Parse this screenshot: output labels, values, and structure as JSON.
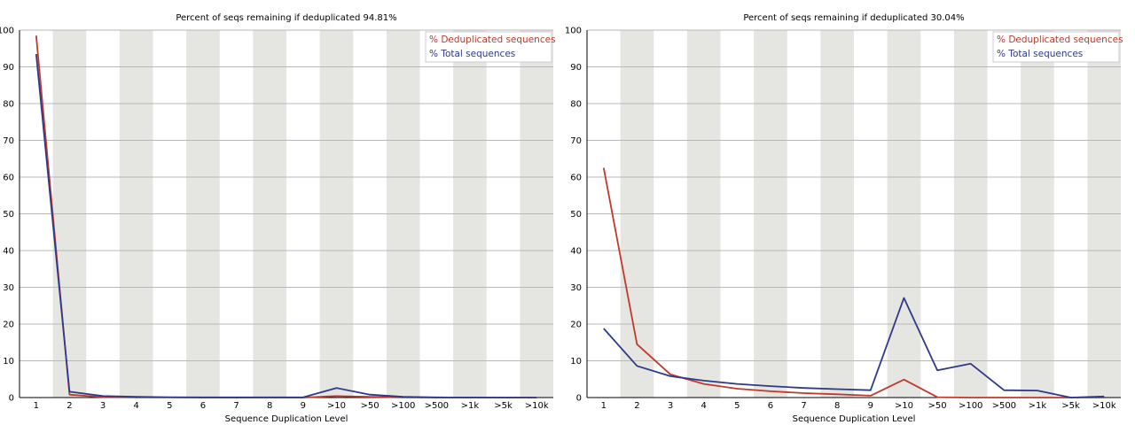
{
  "chart_data": [
    {
      "type": "line",
      "title": "Percent of seqs remaining if deduplicated 94.81%",
      "xlabel": "Sequence Duplication Level",
      "ylabel": "",
      "categories": [
        "1",
        "2",
        "3",
        "4",
        "5",
        "6",
        "7",
        "8",
        "9",
        ">10",
        ">50",
        ">100",
        ">500",
        ">1k",
        ">5k",
        ">10k"
      ],
      "ylim": [
        0,
        100
      ],
      "yticks": [
        0,
        10,
        20,
        30,
        40,
        50,
        60,
        70,
        80,
        90,
        100
      ],
      "grid": true,
      "legend_position": "top-right",
      "series": [
        {
          "name": "% Deduplicated sequences",
          "color": "#c0392b",
          "values": [
            98.5,
            0.8,
            0.1,
            0.05,
            0.02,
            0.01,
            0.01,
            0.01,
            0.01,
            0.4,
            0.2,
            0.05,
            0.01,
            0.0,
            0.0,
            0.0
          ]
        },
        {
          "name": "% Total sequences",
          "color": "#2e3a87",
          "values": [
            93.5,
            1.6,
            0.4,
            0.2,
            0.1,
            0.05,
            0.05,
            0.05,
            0.05,
            2.6,
            0.8,
            0.2,
            0.05,
            0.02,
            0.0,
            0.0
          ]
        }
      ]
    },
    {
      "type": "line",
      "title": "Percent of seqs remaining if deduplicated 30.04%",
      "xlabel": "Sequence Duplication Level",
      "ylabel": "",
      "categories": [
        "1",
        "2",
        "3",
        "4",
        "5",
        "6",
        "7",
        "8",
        "9",
        ">10",
        ">50",
        ">100",
        ">500",
        ">1k",
        ">5k",
        ">10k"
      ],
      "ylim": [
        0,
        100
      ],
      "yticks": [
        0,
        10,
        20,
        30,
        40,
        50,
        60,
        70,
        80,
        90,
        100
      ],
      "grid": true,
      "legend_position": "top-right",
      "series": [
        {
          "name": "% Deduplicated sequences",
          "color": "#c0392b",
          "values": [
            62.5,
            14.5,
            6.3,
            3.7,
            2.4,
            1.7,
            1.2,
            0.9,
            0.5,
            4.9,
            0.1,
            0.0,
            0.0,
            0.0,
            0.0,
            0.0
          ]
        },
        {
          "name": "% Total sequences",
          "color": "#2e3a87",
          "values": [
            18.8,
            8.6,
            5.8,
            4.6,
            3.7,
            3.1,
            2.6,
            2.3,
            2.0,
            27.1,
            7.4,
            9.2,
            2.0,
            1.9,
            0.0,
            0.3
          ]
        }
      ]
    }
  ]
}
